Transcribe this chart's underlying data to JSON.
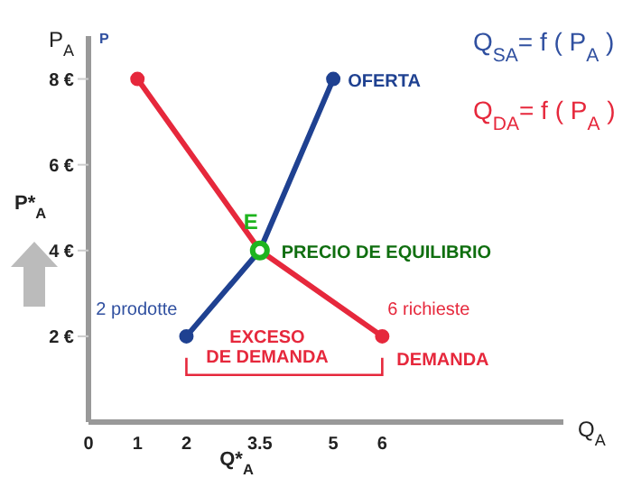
{
  "chart_data": {
    "type": "line",
    "xlabel": "Q$_{A}$",
    "ylabel": "P$_{A}$",
    "xlim": [
      0,
      9.7
    ],
    "ylim": [
      0,
      9
    ],
    "xticks": [
      0,
      1,
      2,
      3.5,
      5,
      6
    ],
    "yticks": [
      {
        "value": 2,
        "label": "2 €"
      },
      {
        "value": 4,
        "label": "4 €"
      },
      {
        "value": 6,
        "label": "6 €"
      },
      {
        "value": 8,
        "label": "8 €"
      }
    ],
    "grid": false,
    "marker": "circle",
    "line_style": "solid",
    "series": [
      {
        "name": "OFERTA",
        "color": "#1f4191",
        "x": [
          2,
          3.5,
          5
        ],
        "values": [
          2,
          4,
          8
        ]
      },
      {
        "name": "DEMANDA",
        "color": "#e6283c",
        "x": [
          1,
          3.5,
          6
        ],
        "values": [
          8,
          4,
          2
        ]
      },
      {
        "type": "scatter",
        "color": "#1eb41e",
        "x": [
          3.5
        ],
        "values": [
          4
        ]
      }
    ],
    "annotations": [
      "Q$_{SA}$= f ( P$_{A}$ )",
      "Q$_{DA}$= f ( P$_{A}$ )",
      {
        "text": "E",
        "x": 3.5,
        "y": 4
      },
      {
        "text": "PRECIO DE EQUILIBRIO",
        "x": 3.5,
        "y": 4
      },
      {
        "text": "2 prodotte",
        "x": 2,
        "y": 2
      },
      {
        "text": "6 richieste",
        "x": 6,
        "y": 2
      },
      "EXCESO DE DEMANDA",
      "P*$_{A}$",
      "Q*$_{A}$",
      "P"
    ]
  }
}
